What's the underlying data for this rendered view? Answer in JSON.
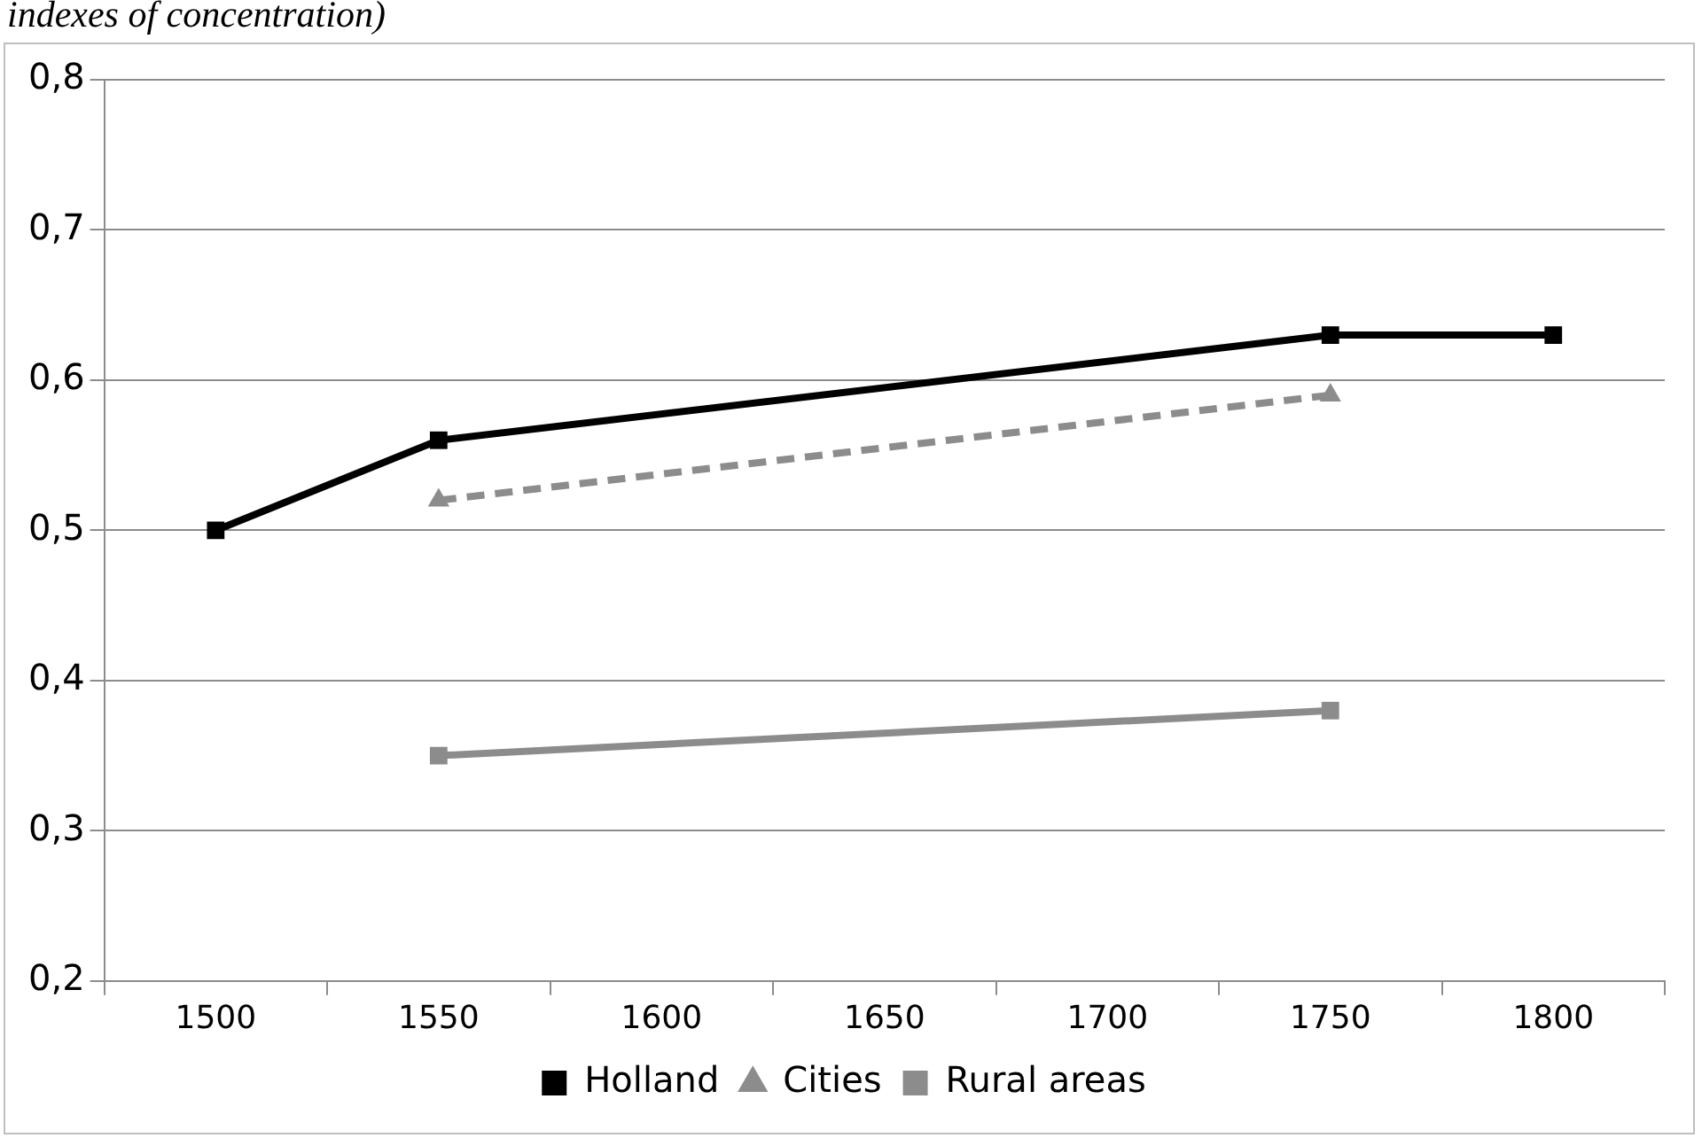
{
  "chart_data": {
    "type": "line",
    "title": "indexes of concentration)",
    "categories": [
      "1500",
      "1550",
      "1600",
      "1650",
      "1700",
      "1750",
      "1800"
    ],
    "series": [
      {
        "name": "Holland",
        "color": "#000000",
        "marker": "square",
        "line_style": "solid",
        "values": [
          0.5,
          0.56,
          null,
          null,
          null,
          0.63,
          0.63
        ]
      },
      {
        "name": "Cities",
        "color": "#8c8c8c",
        "marker": "triangle",
        "line_style": "dashed",
        "values": [
          null,
          0.52,
          null,
          null,
          null,
          0.59,
          null
        ]
      },
      {
        "name": "Rural areas",
        "color": "#8c8c8c",
        "marker": "square",
        "line_style": "solid",
        "values": [
          null,
          0.35,
          null,
          null,
          null,
          0.38,
          null
        ]
      }
    ],
    "ylim": [
      0.2,
      0.8
    ],
    "yticks": [
      {
        "value": 0.2,
        "label": "0,2"
      },
      {
        "value": 0.3,
        "label": "0,3"
      },
      {
        "value": 0.4,
        "label": "0,4"
      },
      {
        "value": 0.5,
        "label": "0,5"
      },
      {
        "value": 0.6,
        "label": "0,6"
      },
      {
        "value": 0.7,
        "label": "0,7"
      },
      {
        "value": 0.8,
        "label": "0,8"
      }
    ],
    "grid": "y",
    "legend": "bottom"
  }
}
